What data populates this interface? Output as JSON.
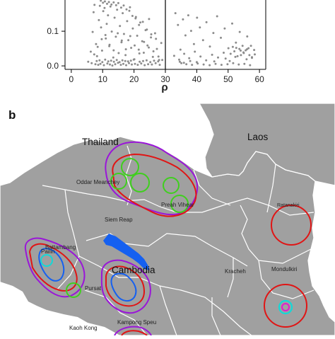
{
  "panel_a": {
    "chart_data": {
      "type": "scatter",
      "x_ticks": [
        "0",
        "10",
        "20",
        "30",
        "40",
        "50",
        "60"
      ],
      "y_ticks": [
        "0.0",
        "0.1"
      ],
      "xlabel": "ρ",
      "ylabel": "",
      "xlim": [
        -2,
        62
      ],
      "ylim": [
        -0.01,
        0.19
      ],
      "vline_x": 30,
      "x": [
        5.4,
        6.2,
        6.8,
        7.1,
        7.4,
        7.9,
        8.2,
        8.8,
        9.1,
        9.5,
        9.8,
        10.2,
        10.6,
        11.0,
        11.3,
        11.7,
        12.1,
        12.5,
        12.9,
        13.4,
        13.8,
        14.2,
        14.6,
        15.1,
        15.5,
        16.0,
        16.4,
        16.8,
        17.3,
        17.8,
        18.2,
        18.7,
        19.1,
        19.6,
        20.1,
        20.6,
        21.0,
        21.5,
        22.0,
        22.6,
        23.1,
        23.7,
        24.3,
        24.8,
        25.4,
        26.0,
        26.7,
        27.3,
        28.0,
        28.7,
        6.5,
        7.7,
        8.6,
        9.3,
        10.4,
        11.5,
        12.3,
        13.1,
        14.0,
        14.9,
        15.8,
        16.6,
        17.5,
        18.4,
        19.3,
        20.3,
        21.2,
        22.3,
        23.4,
        24.5,
        25.7,
        26.9,
        28.2,
        8.1,
        9.0,
        9.9,
        10.8,
        11.8,
        12.7,
        13.6,
        14.5,
        15.4,
        16.3,
        17.2,
        18.1,
        19.0,
        19.9,
        21.8,
        22.9,
        24.0,
        25.2,
        26.4,
        27.7,
        29.0,
        7.3,
        8.4,
        9.7,
        10.9,
        12.2,
        13.5,
        14.8,
        16.1,
        17.4,
        18.8,
        20.2,
        21.7,
        23.2,
        24.7,
        26.2,
        27.8,
        9.4,
        10.1,
        10.7,
        11.4,
        12.0,
        12.8,
        13.5,
        14.3,
        15.0,
        15.9,
        16.7,
        17.6,
        18.5,
        19.5,
        20.5,
        21.6,
        22.8,
        24.1,
        25.5,
        27.0,
        33.2,
        34.0,
        34.8,
        35.6,
        36.4,
        37.3,
        38.2,
        39.1,
        40.1,
        41.0,
        42.0,
        43.1,
        44.2,
        45.3,
        46.5,
        47.7,
        48.9,
        50.1,
        51.3,
        52.5,
        53.7,
        54.9,
        56.1,
        57.3,
        58.5,
        32.8,
        34.4,
        36.0,
        37.6,
        39.4,
        41.2,
        43.0,
        44.9,
        46.8,
        48.6,
        50.5,
        52.3,
        54.1,
        55.9,
        57.6,
        35.1,
        36.7,
        38.5,
        40.3,
        42.2,
        44.1,
        46.0,
        47.9,
        49.8,
        51.6,
        53.4,
        55.2,
        57.0,
        34.6,
        35.9,
        37.9,
        40.0,
        45.6,
        49.2,
        50.8,
        52.0,
        53.0,
        54.0,
        55.0,
        56.0,
        56.8,
        57.6,
        58.3,
        51.5,
        52.6,
        53.6,
        54.6,
        55.6,
        56.5
      ],
      "y": [
        0.012,
        0.041,
        0.098,
        0.155,
        0.176,
        0.063,
        0.028,
        0.132,
        0.173,
        0.111,
        0.044,
        0.158,
        0.167,
        0.079,
        0.121,
        0.146,
        0.057,
        0.171,
        0.099,
        0.024,
        0.139,
        0.084,
        0.162,
        0.037,
        0.115,
        0.068,
        0.152,
        0.092,
        0.031,
        0.129,
        0.074,
        0.169,
        0.052,
        0.108,
        0.019,
        0.141,
        0.087,
        0.047,
        0.125,
        0.071,
        0.038,
        0.103,
        0.059,
        0.135,
        0.082,
        0.026,
        0.094,
        0.049,
        0.017,
        0.066,
        0.008,
        0.005,
        0.003,
        0.006,
        0.002,
        0.007,
        0.004,
        0.001,
        0.005,
        0.009,
        0.003,
        0.006,
        0.002,
        0.008,
        0.004,
        0.006,
        0.003,
        0.007,
        0.002,
        0.005,
        0.004,
        0.008,
        0.003,
        0.014,
        0.016,
        0.011,
        0.018,
        0.013,
        0.015,
        0.012,
        0.017,
        0.011,
        0.016,
        0.014,
        0.013,
        0.015,
        0.018,
        0.012,
        0.014,
        0.016,
        0.011,
        0.015,
        0.013,
        0.017,
        0.033,
        0.055,
        0.077,
        0.089,
        0.061,
        0.045,
        0.094,
        0.073,
        0.048,
        0.086,
        0.059,
        0.036,
        0.069,
        0.053,
        0.042,
        0.027,
        0.188,
        0.182,
        0.186,
        0.179,
        0.184,
        0.177,
        0.183,
        0.175,
        0.181,
        0.168,
        0.174,
        0.163,
        0.159,
        0.144,
        0.137,
        0.118,
        0.127,
        0.105,
        0.091,
        0.078,
        0.152,
        0.118,
        0.047,
        0.134,
        0.088,
        0.146,
        0.101,
        0.063,
        0.139,
        0.111,
        0.074,
        0.126,
        0.056,
        0.095,
        0.143,
        0.081,
        0.108,
        0.051,
        0.122,
        0.067,
        0.098,
        0.039,
        0.085,
        0.058,
        0.033,
        0.029,
        0.018,
        0.035,
        0.022,
        0.041,
        0.027,
        0.016,
        0.032,
        0.024,
        0.038,
        0.014,
        0.026,
        0.031,
        0.019,
        0.023,
        0.008,
        0.005,
        0.003,
        0.007,
        0.004,
        0.002,
        0.006,
        0.003,
        0.005,
        0.008,
        0.004,
        0.006,
        0.002,
        0.012,
        0.009,
        0.014,
        0.011,
        0.013,
        0.021,
        0.035,
        0.042,
        0.028,
        0.044,
        0.037,
        0.048,
        0.031,
        0.025,
        0.046,
        0.055,
        0.052,
        0.049,
        0.058,
        0.045,
        0.051
      ]
    }
  },
  "panel_b": {
    "panel_label": "b",
    "countries": {
      "thailand": "Thailand",
      "laos": "Laos",
      "cambodia": "Cambodia"
    },
    "provinces": {
      "oddar_meanchey": "Oddar Meanchey",
      "preah_vihear": "Preah Vihear",
      "siem_reap": "Siem Reap",
      "ratanakiri": "Ratanakiri",
      "battambang": "Battambang",
      "pailin": "Pailin",
      "pursat": "Pursat",
      "kracheh": "Kracheh",
      "mondulkiri": "Mondulkiri",
      "kampong_speu": "Kampong Speu",
      "kaoh_kong": "Kaoh Kong"
    },
    "colors": {
      "red": "#e01515",
      "purple": "#9a16d8",
      "green": "#3fcf1e",
      "blue": "#1560f0",
      "cyan": "#12d8d8",
      "magenta": "#e21bd0",
      "land": "#a0a0a0",
      "border": "#ffffff"
    }
  }
}
